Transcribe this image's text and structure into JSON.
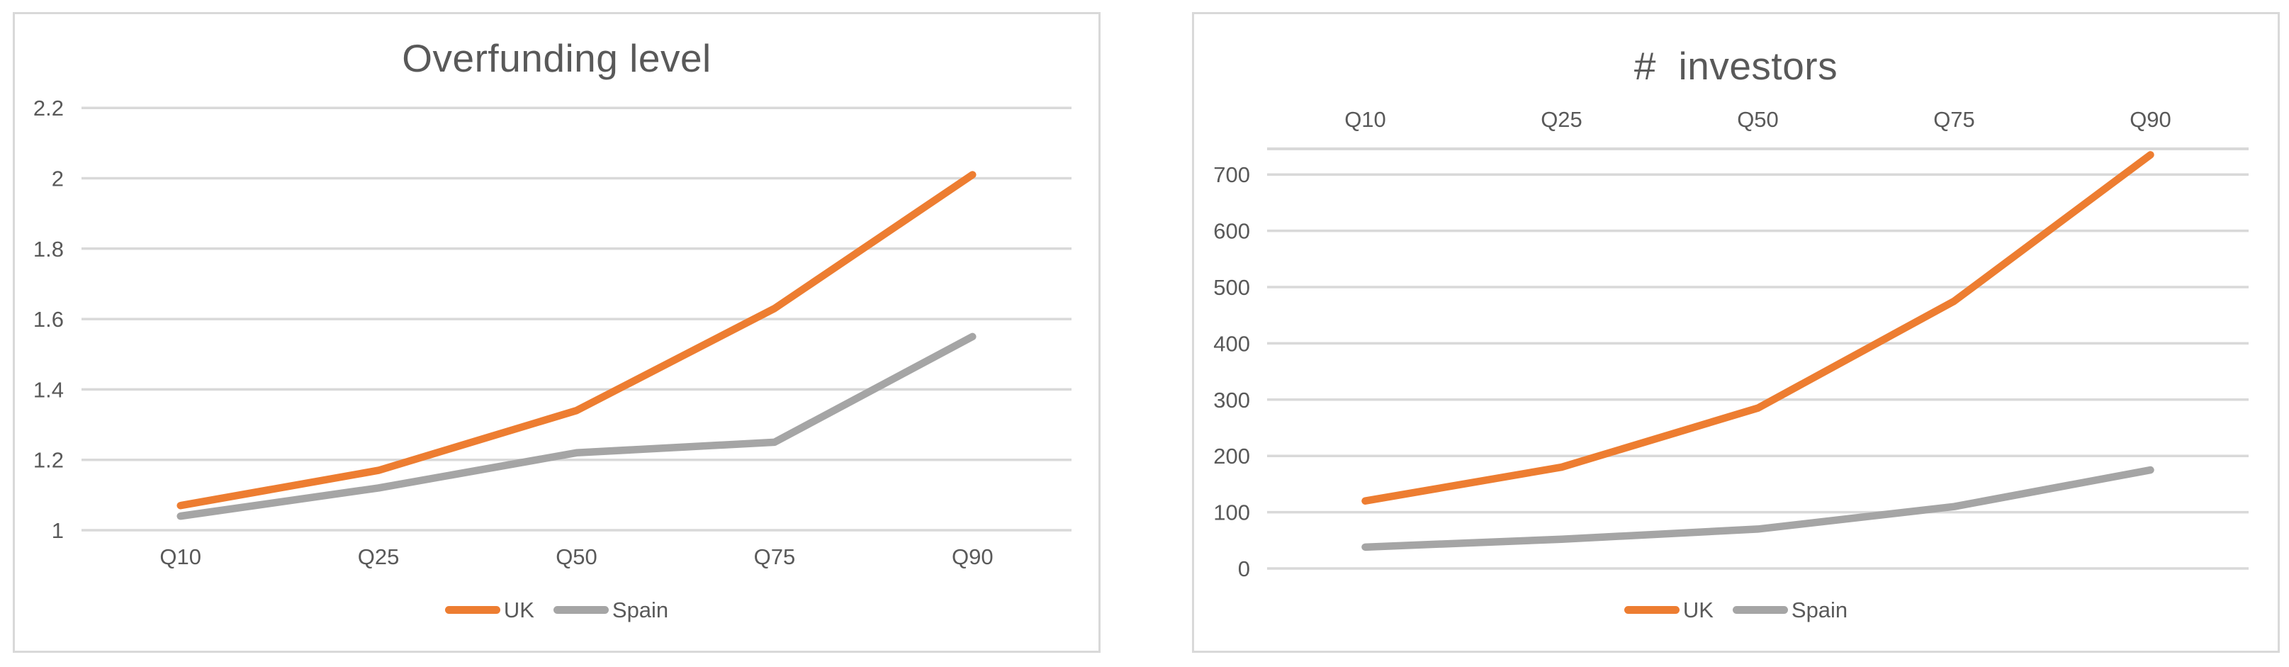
{
  "page": {
    "background": "#FFFFFF"
  },
  "colors": {
    "uk_accent": "#ED7D31",
    "spain_accent": "#A5A5A5",
    "gridline": "#D9D9D9",
    "box_border": "#D9D9D9",
    "text": "#595959"
  },
  "chart_data": [
    {
      "type": "line",
      "title": "Overfunding level",
      "categories": [
        "Q10",
        "Q25",
        "Q50",
        "Q75",
        "Q90"
      ],
      "series": [
        {
          "name": "UK",
          "color": "#ED7D31",
          "values": [
            1.07,
            1.17,
            1.34,
            1.63,
            2.01
          ]
        },
        {
          "name": "Spain",
          "color": "#A5A5A5",
          "values": [
            1.04,
            1.12,
            1.22,
            1.25,
            1.55
          ]
        }
      ],
      "xlabel": "",
      "ylabel": "",
      "ylim": [
        1,
        2.2
      ],
      "y_ticks": [
        1,
        1.2,
        1.4,
        1.6,
        1.8,
        2,
        2.2
      ],
      "grid": true,
      "legend_position": "bottom",
      "x_label_position": "bottom",
      "top_axis_line": false
    },
    {
      "type": "line",
      "title": "#  investors",
      "categories": [
        "Q10",
        "Q25",
        "Q50",
        "Q75",
        "Q90"
      ],
      "series": [
        {
          "name": "UK",
          "color": "#ED7D31",
          "values": [
            120,
            180,
            285,
            475,
            735
          ]
        },
        {
          "name": "Spain",
          "color": "#A5A5A5",
          "values": [
            38,
            52,
            70,
            110,
            175
          ]
        }
      ],
      "xlabel": "",
      "ylabel": "",
      "ylim": [
        0,
        745
      ],
      "y_ticks": [
        0,
        100,
        200,
        300,
        400,
        500,
        600,
        700
      ],
      "grid": true,
      "legend_position": "bottom",
      "x_label_position": "top",
      "top_axis_line": true
    }
  ]
}
